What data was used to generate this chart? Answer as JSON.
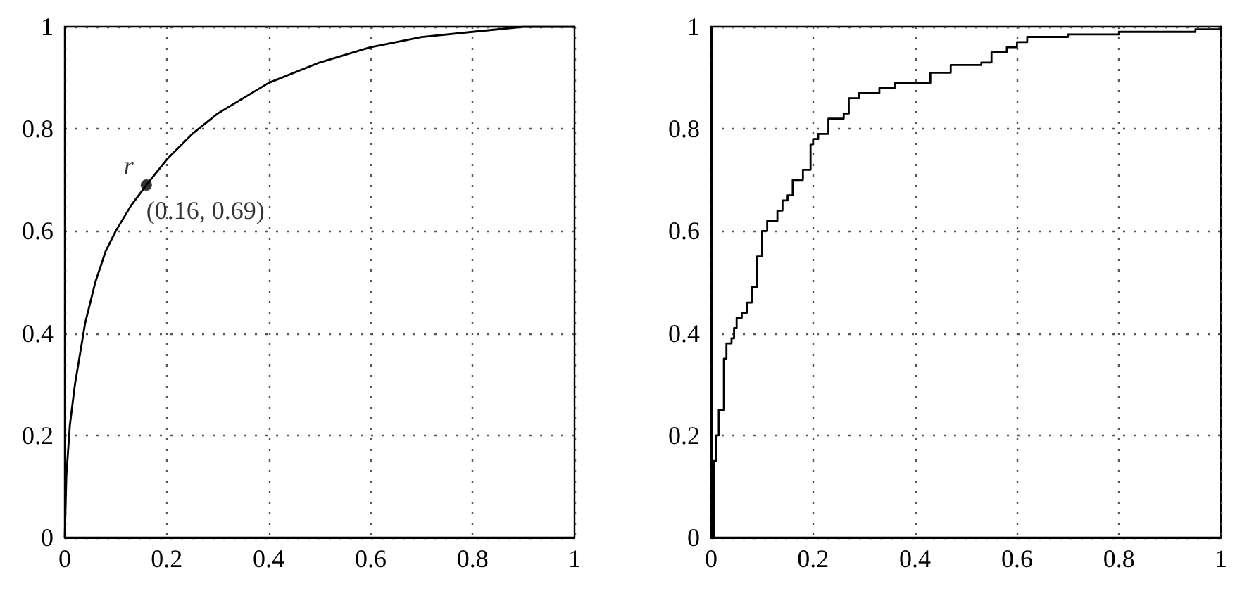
{
  "chart_data": [
    {
      "type": "line",
      "xlim": [
        0,
        1
      ],
      "ylim": [
        0,
        1
      ],
      "xticks": [
        0,
        0.2,
        0.4,
        0.6,
        0.8,
        1
      ],
      "yticks": [
        0,
        0.2,
        0.4,
        0.6,
        0.8,
        1
      ],
      "grid": true,
      "line_style": "solid",
      "marker": "none",
      "series": [
        {
          "color": "#000000",
          "x": [
            0,
            0.003,
            0.01,
            0.02,
            0.04,
            0.06,
            0.08,
            0.1,
            0.13,
            0.16,
            0.2,
            0.25,
            0.3,
            0.4,
            0.5,
            0.6,
            0.7,
            0.8,
            0.9,
            1
          ],
          "values": [
            0,
            0.12,
            0.22,
            0.3,
            0.42,
            0.5,
            0.56,
            0.6,
            0.65,
            0.69,
            0.74,
            0.79,
            0.83,
            0.89,
            0.93,
            0.96,
            0.98,
            0.99,
            1,
            1
          ]
        },
        {
          "type": "scatter",
          "marker": "circle",
          "color": "#000000",
          "x": [
            0.16
          ],
          "values": [
            0.69
          ]
        }
      ],
      "annotations": [
        {
          "text": "r",
          "x": 0.16,
          "y": 0.69
        },
        {
          "text": "(0.16, 0.69)",
          "x": 0.16,
          "y": 0.69
        }
      ]
    },
    {
      "type": "step",
      "xlim": [
        0,
        1
      ],
      "ylim": [
        0,
        1
      ],
      "xticks": [
        0,
        0.2,
        0.4,
        0.6,
        0.8,
        1
      ],
      "yticks": [
        0,
        0.2,
        0.4,
        0.6,
        0.8,
        1
      ],
      "grid": true,
      "line_style": "solid",
      "marker": "none",
      "series": [
        {
          "color": "#000000",
          "x": [
            0,
            0.005,
            0.01,
            0.015,
            0.025,
            0.03,
            0.04,
            0.045,
            0.05,
            0.06,
            0.07,
            0.08,
            0.09,
            0.1,
            0.11,
            0.12,
            0.13,
            0.14,
            0.15,
            0.16,
            0.18,
            0.195,
            0.2,
            0.21,
            0.23,
            0.26,
            0.27,
            0.29,
            0.33,
            0.36,
            0.4,
            0.43,
            0.47,
            0.53,
            0.55,
            0.58,
            0.6,
            0.62,
            0.7,
            0.8,
            0.95,
            1
          ],
          "values": [
            0,
            0.15,
            0.2,
            0.25,
            0.35,
            0.38,
            0.39,
            0.41,
            0.43,
            0.44,
            0.46,
            0.49,
            0.55,
            0.6,
            0.62,
            0.62,
            0.64,
            0.66,
            0.67,
            0.7,
            0.72,
            0.77,
            0.78,
            0.79,
            0.82,
            0.83,
            0.86,
            0.87,
            0.88,
            0.89,
            0.89,
            0.91,
            0.925,
            0.93,
            0.95,
            0.96,
            0.97,
            0.98,
            0.985,
            0.99,
            0.995,
            1
          ]
        }
      ]
    }
  ]
}
